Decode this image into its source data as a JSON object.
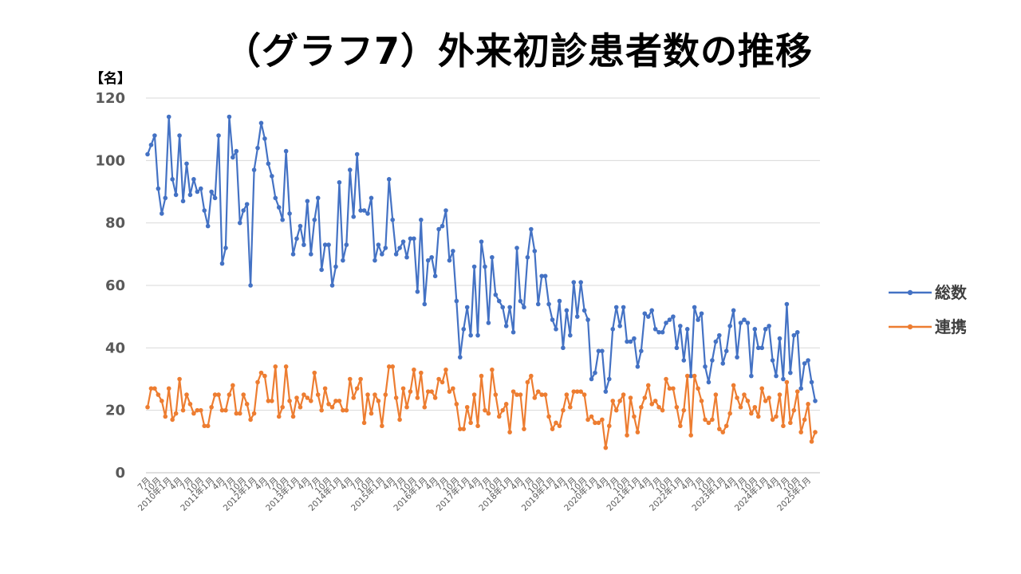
{
  "title": "（グラフ7）外来初診患者数の推移",
  "unit_label": "【名】",
  "chart_data": {
    "type": "line",
    "ylim": [
      0,
      120
    ],
    "yticks": [
      0,
      20,
      40,
      60,
      80,
      100,
      120
    ],
    "grid": true,
    "legend_position": "right",
    "x_start": "2009-07",
    "x_end": "2025-03",
    "x_step_months": 1,
    "x_tick_labels": [
      "7月",
      "10月",
      "2010年1月",
      "4月",
      "7月",
      "10月",
      "2011年1月",
      "4月",
      "7月",
      "10月",
      "2012年1月",
      "4月",
      "7月",
      "10月",
      "2013年1月",
      "4月",
      "7月",
      "10月",
      "2014年1月",
      "4月",
      "7月",
      "10月",
      "2015年1月",
      "4月",
      "7月",
      "10月",
      "2016年1月",
      "4月",
      "7月",
      "10月",
      "2017年1月",
      "4月",
      "7月",
      "10月",
      "2018年1月",
      "4月",
      "7月",
      "10月",
      "2019年1月",
      "4月",
      "7月",
      "10月",
      "2020年1月",
      "4月",
      "7月",
      "10月",
      "2021年1月",
      "4月",
      "7月",
      "10月",
      "2022年1月",
      "4月",
      "7月",
      "10月",
      "2023年1月",
      "4月",
      "7月",
      "10月",
      "2024年1月",
      "4月",
      "7月",
      "10月",
      "2025年1月"
    ],
    "series": [
      {
        "name": "総数",
        "color": "#4472C4",
        "values": [
          102,
          105,
          108,
          91,
          83,
          88,
          114,
          94,
          89,
          108,
          87,
          99,
          89,
          94,
          90,
          91,
          84,
          79,
          90,
          88,
          108,
          67,
          72,
          114,
          101,
          103,
          80,
          84,
          86,
          60,
          97,
          104,
          112,
          107,
          99,
          95,
          88,
          85,
          81,
          103,
          83,
          70,
          75,
          79,
          73,
          87,
          70,
          81,
          88,
          65,
          73,
          73,
          60,
          66,
          93,
          68,
          73,
          97,
          82,
          102,
          84,
          84,
          83,
          88,
          68,
          73,
          70,
          72,
          94,
          81,
          70,
          72,
          74,
          69,
          75,
          75,
          58,
          81,
          54,
          68,
          69,
          63,
          78,
          79,
          84,
          68,
          71,
          55,
          37,
          46,
          53,
          44,
          66,
          44,
          74,
          66,
          48,
          69,
          57,
          55,
          53,
          47,
          53,
          45,
          72,
          55,
          53,
          69,
          78,
          71,
          54,
          63,
          63,
          54,
          49,
          46,
          55,
          40,
          52,
          44,
          61,
          50,
          61,
          52,
          49,
          30,
          32,
          39,
          39,
          26,
          30,
          46,
          53,
          47,
          53,
          42,
          42,
          43,
          34,
          39,
          51,
          50,
          52,
          46,
          45,
          45,
          48,
          49,
          50,
          40,
          47,
          36,
          46,
          31,
          53,
          49,
          51,
          34,
          29,
          36,
          42,
          44,
          35,
          39,
          47,
          52,
          37,
          48,
          49,
          48,
          31,
          46,
          40,
          40,
          46,
          47,
          36,
          31,
          43,
          30,
          54,
          32,
          44,
          45,
          27,
          35,
          36,
          29,
          23
        ]
      },
      {
        "name": "連携",
        "color": "#ED7D31",
        "values": [
          21,
          27,
          27,
          25,
          23,
          18,
          27,
          17,
          19,
          30,
          20,
          25,
          22,
          19,
          20,
          20,
          15,
          15,
          21,
          25,
          25,
          20,
          20,
          25,
          28,
          19,
          19,
          25,
          22,
          17,
          19,
          29,
          32,
          31,
          23,
          23,
          34,
          18,
          21,
          34,
          23,
          18,
          24,
          21,
          25,
          24,
          23,
          32,
          25,
          20,
          27,
          22,
          21,
          23,
          23,
          20,
          20,
          30,
          24,
          27,
          30,
          16,
          25,
          19,
          25,
          23,
          15,
          25,
          34,
          34,
          24,
          17,
          27,
          21,
          26,
          33,
          24,
          32,
          21,
          26,
          26,
          24,
          30,
          29,
          33,
          26,
          27,
          22,
          14,
          14,
          21,
          16,
          25,
          15,
          31,
          20,
          19,
          33,
          25,
          18,
          20,
          22,
          13,
          26,
          25,
          25,
          14,
          29,
          31,
          24,
          26,
          25,
          25,
          18,
          14,
          16,
          15,
          20,
          25,
          21,
          26,
          26,
          26,
          25,
          17,
          18,
          16,
          16,
          17,
          8,
          15,
          23,
          20,
          23,
          25,
          12,
          24,
          18,
          13,
          21,
          24,
          28,
          22,
          23,
          21,
          20,
          30,
          27,
          27,
          21,
          15,
          20,
          31,
          12,
          31,
          27,
          23,
          17,
          16,
          17,
          25,
          14,
          13,
          15,
          19,
          28,
          24,
          21,
          25,
          23,
          19,
          21,
          18,
          27,
          23,
          24,
          17,
          18,
          25,
          15,
          29,
          16,
          20,
          26,
          13,
          17,
          22,
          10,
          13
        ]
      }
    ]
  }
}
